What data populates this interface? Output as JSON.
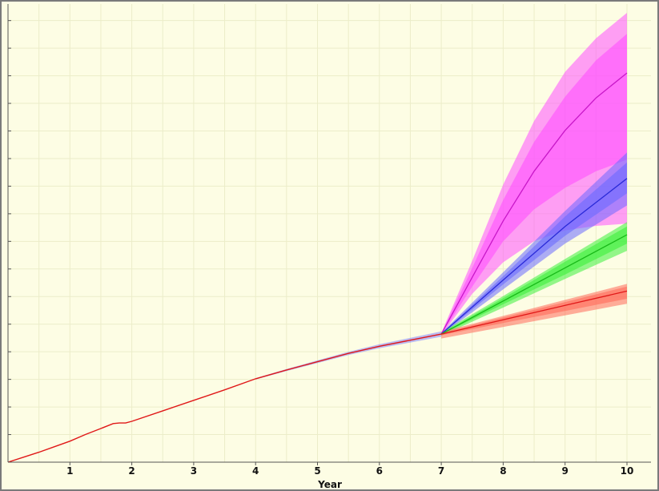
{
  "chart_data": {
    "type": "area",
    "xlabel": "Year",
    "ylabel": "",
    "xlim": [
      0,
      10.4
    ],
    "ylim": [
      0,
      8.3
    ],
    "xticks": [
      1,
      2,
      3,
      4,
      5,
      6,
      7,
      8,
      9,
      10
    ],
    "grid": true,
    "legend": "none",
    "colors": {
      "background": "#fdfde4",
      "grid": "#ecedc9",
      "red": "#e01818",
      "red_band": "#ff6a5a",
      "green": "#18b818",
      "green_band": "#3cf03c",
      "blue": "#2a2ad8",
      "blue_band": "#6a6aff",
      "magenta": "#c818c8",
      "magenta_band": "#ff50ff"
    },
    "history": {
      "x": [
        0,
        0.25,
        0.5,
        0.75,
        1.0,
        1.25,
        1.5,
        1.7,
        1.8,
        1.9,
        2.0,
        2.5,
        3.0,
        3.5,
        4.0,
        4.5,
        5.0,
        5.5,
        6.0,
        6.5,
        7.0
      ],
      "y": [
        0.0,
        0.09,
        0.18,
        0.28,
        0.38,
        0.5,
        0.61,
        0.7,
        0.71,
        0.71,
        0.74,
        0.93,
        1.12,
        1.31,
        1.51,
        1.67,
        1.82,
        1.97,
        2.1,
        2.21,
        2.32
      ],
      "band_start_x": 4.0
    },
    "series": [
      {
        "color": "red",
        "x": [
          7,
          8,
          9,
          10
        ],
        "mid": [
          2.32,
          2.58,
          2.84,
          3.1
        ],
        "inner_low": [
          2.3,
          2.52,
          2.74,
          2.96
        ],
        "inner_high": [
          2.34,
          2.62,
          2.9,
          3.18
        ],
        "outer_low": [
          2.24,
          2.45,
          2.66,
          2.87
        ],
        "outer_high": [
          2.36,
          2.65,
          2.94,
          3.23
        ]
      },
      {
        "color": "green",
        "x": [
          7,
          8,
          9,
          10
        ],
        "mid": [
          2.32,
          2.92,
          3.52,
          4.12
        ],
        "inner_low": [
          2.31,
          2.86,
          3.4,
          3.96
        ],
        "inner_high": [
          2.33,
          2.97,
          3.63,
          4.27
        ],
        "outer_low": [
          2.29,
          2.8,
          3.32,
          3.83
        ],
        "outer_high": [
          2.35,
          3.01,
          3.68,
          4.35
        ]
      },
      {
        "color": "blue",
        "x": [
          7,
          8,
          9,
          10
        ],
        "mid": [
          2.32,
          3.3,
          4.27,
          5.14
        ],
        "inner_low": [
          2.31,
          3.22,
          4.1,
          4.87
        ],
        "inner_high": [
          2.33,
          3.37,
          4.45,
          5.43
        ],
        "outer_low": [
          2.3,
          3.13,
          3.96,
          4.65
        ],
        "outer_high": [
          2.34,
          3.44,
          4.55,
          5.61
        ]
      },
      {
        "color": "magenta",
        "x": [
          7,
          7.5,
          8,
          8.5,
          9,
          9.5,
          10
        ],
        "mid": [
          2.32,
          3.35,
          4.37,
          5.27,
          6.01,
          6.6,
          7.05
        ],
        "inner_low": [
          2.31,
          3.18,
          4.0,
          4.58,
          4.97,
          5.27,
          5.48
        ],
        "inner_high": [
          2.33,
          3.52,
          4.75,
          5.8,
          6.62,
          7.28,
          7.76
        ],
        "outer_low": [
          2.3,
          3.05,
          3.62,
          4.0,
          4.2,
          4.28,
          4.32
        ],
        "outer_high": [
          2.34,
          3.65,
          5.03,
          6.18,
          7.07,
          7.68,
          8.14
        ]
      }
    ]
  }
}
